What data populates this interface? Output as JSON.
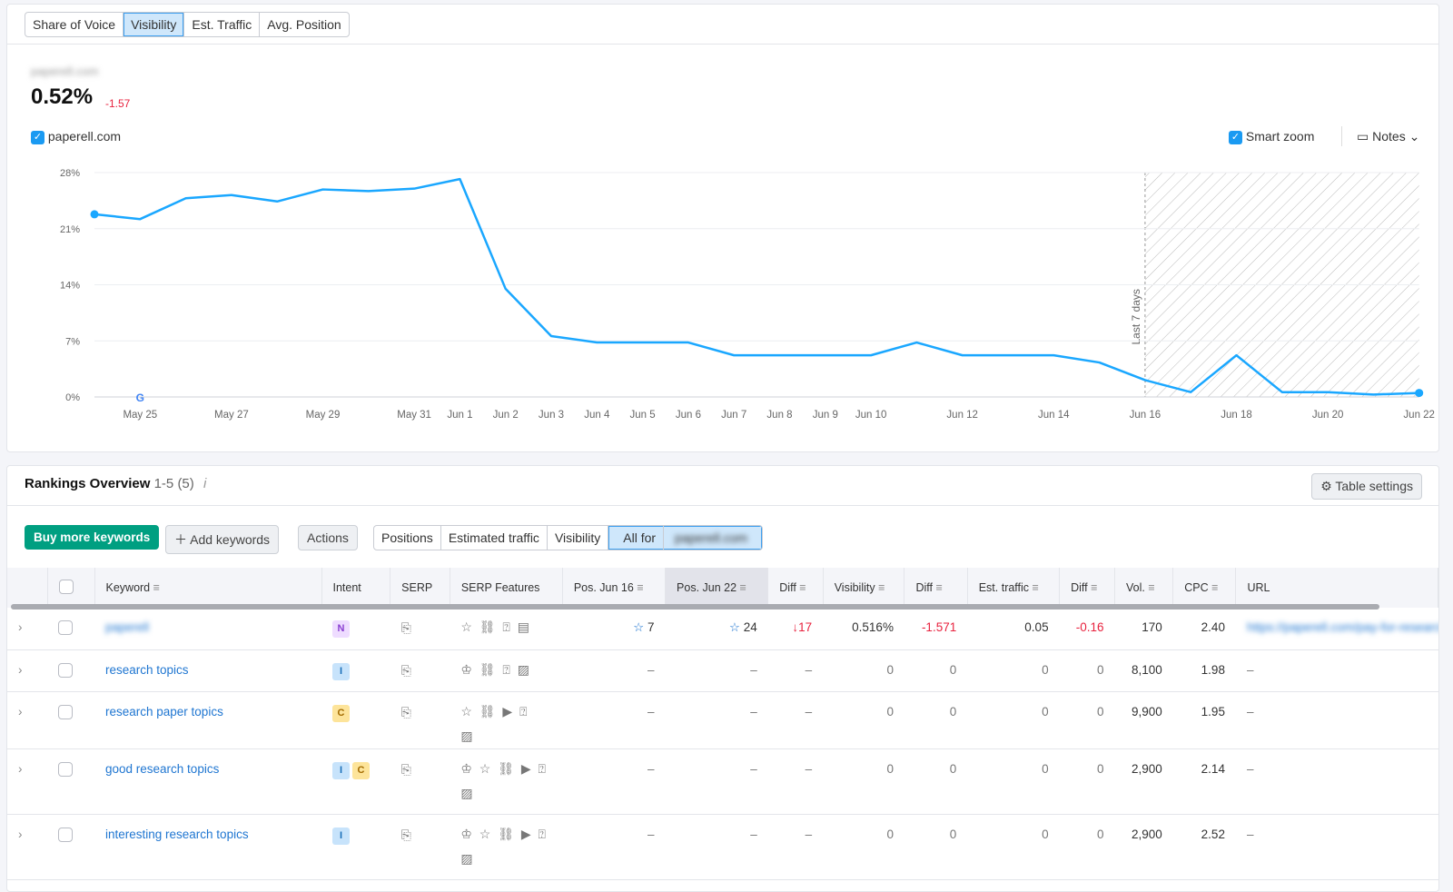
{
  "metric_tabs": [
    "Share of Voice",
    "Visibility",
    "Est. Traffic",
    "Avg. Position"
  ],
  "active_tab": "Visibility",
  "summary": {
    "domain_blurred": "paperell.com",
    "value": "0.52%",
    "delta": "-1.57"
  },
  "legend": {
    "domain": "paperell.com"
  },
  "controls": {
    "smart_zoom": "Smart zoom",
    "notes": "Notes"
  },
  "chart_data": {
    "type": "line",
    "series": [
      {
        "name": "paperell.com",
        "color": "#1aa7ff",
        "values": [
          22.8,
          22.2,
          24.8,
          25.2,
          24.4,
          25.9,
          25.7,
          26.0,
          27.2,
          13.5,
          7.6,
          6.8,
          6.8,
          6.8,
          5.2,
          5.2,
          5.2,
          5.2,
          6.8,
          5.2,
          5.2,
          5.2,
          4.3,
          2.1,
          0.6,
          5.2,
          0.6,
          0.6,
          0.3,
          0.5
        ]
      }
    ],
    "x": [
      "May 24",
      "May 25",
      "May 26",
      "May 27",
      "May 28",
      "May 29",
      "May 30",
      "May 31",
      "Jun 1",
      "Jun 2",
      "Jun 3",
      "Jun 4",
      "Jun 5",
      "Jun 6",
      "Jun 7",
      "Jun 8",
      "Jun 9",
      "Jun 10",
      "Jun 11",
      "Jun 12",
      "Jun 13",
      "Jun 14",
      "Jun 15",
      "Jun 16",
      "Jun 17",
      "Jun 18",
      "Jun 19",
      "Jun 20",
      "Jun 21",
      "Jun 22"
    ],
    "xtick_labels": [
      "May 25",
      "May 27",
      "May 29",
      "May 31",
      "Jun 1",
      "Jun 2",
      "Jun 3",
      "Jun 4",
      "Jun 5",
      "Jun 6",
      "Jun 7",
      "Jun 8",
      "Jun 9",
      "Jun 10",
      "Jun 12",
      "Jun 14",
      "Jun 16",
      "Jun 18",
      "Jun 20",
      "Jun 22"
    ],
    "yticks": [
      "0%",
      "7%",
      "14%",
      "21%",
      "28%"
    ],
    "ylim": [
      0,
      28
    ],
    "annotation": "Last 7 days",
    "grid": true
  },
  "rankings": {
    "title": "Rankings Overview",
    "range": "1-5",
    "count": "(5)",
    "info": "i",
    "table_settings": "Table settings",
    "buy": "Buy more keywords",
    "add": "Add keywords",
    "actions": "Actions",
    "views": [
      "Positions",
      "Estimated traffic",
      "Visibility",
      "All for"
    ],
    "all_for_blurred": "paperell.com",
    "columns": [
      "Keyword",
      "Intent",
      "SERP",
      "SERP Features",
      "Pos. Jun 16",
      "Pos. Jun 22",
      "Diff",
      "Visibility",
      "Diff",
      "Est. traffic",
      "Diff",
      "Vol.",
      "CPC",
      "URL"
    ],
    "rows": [
      {
        "keyword": "paperell",
        "blur": true,
        "intent": [
          "N"
        ],
        "features": "☆ ⛓ ⍰ ▤",
        "pos1": "7",
        "pos2": "24",
        "diff": "↓17",
        "vis": "0.516%",
        "vdiff": "-1.571",
        "traffic": "0.05",
        "tdiff": "-0.16",
        "vol": "170",
        "cpc": "2.40",
        "url": "https://paperell.com/pay-for-research"
      },
      {
        "keyword": "research topics",
        "intent": [
          "I"
        ],
        "features": "♔ ⛓ ⍰ ▨",
        "pos1": "–",
        "pos2": "–",
        "diff": "–",
        "vis": "0",
        "vdiff": "0",
        "traffic": "0",
        "tdiff": "0",
        "vol": "8,100",
        "cpc": "1.98",
        "url": "–"
      },
      {
        "keyword": "research paper topics",
        "intent": [
          "C"
        ],
        "features": "☆ ⛓ ▶ ⍰ ▨",
        "pos1": "–",
        "pos2": "–",
        "diff": "–",
        "vis": "0",
        "vdiff": "0",
        "traffic": "0",
        "tdiff": "0",
        "vol": "9,900",
        "cpc": "1.95",
        "url": "–"
      },
      {
        "keyword": "good research topics",
        "intent": [
          "I",
          "C"
        ],
        "features": "♔ ☆ ⛓ ▶ ⍰ ▨",
        "pos1": "–",
        "pos2": "–",
        "diff": "–",
        "vis": "0",
        "vdiff": "0",
        "traffic": "0",
        "tdiff": "0",
        "vol": "2,900",
        "cpc": "2.14",
        "url": "–"
      },
      {
        "keyword": "interesting research topics",
        "intent": [
          "I"
        ],
        "features": "♔ ☆ ⛓ ▶ ⍰ ▨",
        "pos1": "–",
        "pos2": "–",
        "diff": "–",
        "vis": "0",
        "vdiff": "0",
        "traffic": "0",
        "tdiff": "0",
        "vol": "2,900",
        "cpc": "2.52",
        "url": "–"
      }
    ]
  }
}
